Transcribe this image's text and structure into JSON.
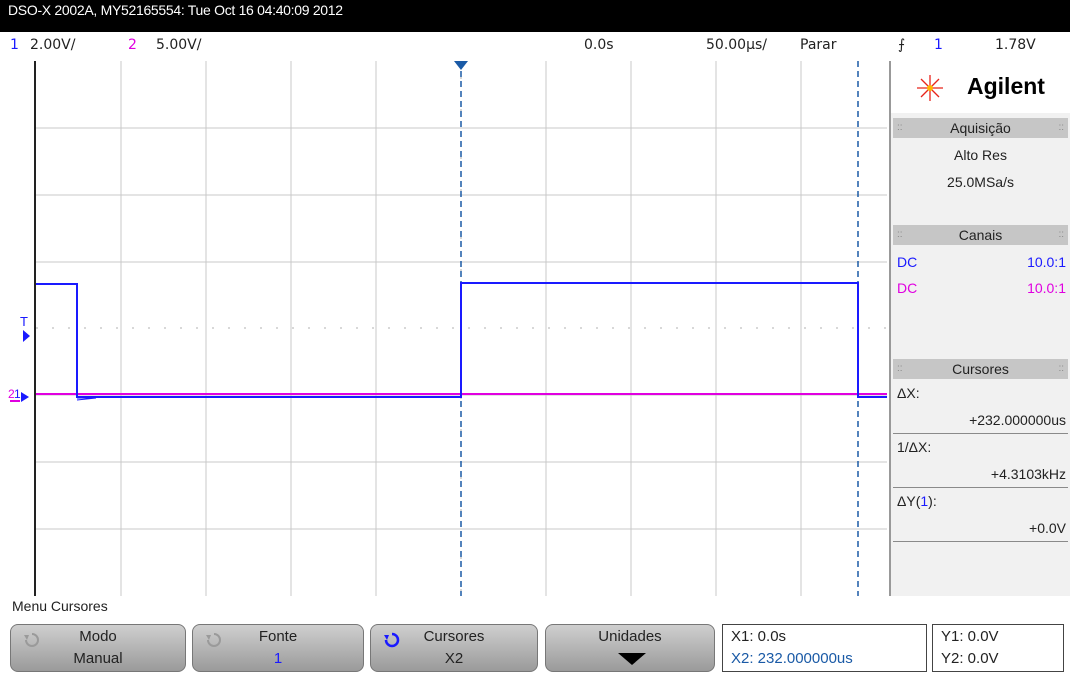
{
  "title": "DSO-X 2002A, MY52165554: Tue Oct 16 04:40:09 2012",
  "status": {
    "ch1_num": "1",
    "ch1_scale": "2.00V/",
    "ch2_num": "2",
    "ch2_scale": "5.00V/",
    "time_pos": "0.0s",
    "timebase": "50.00µs/",
    "run_state": "Parar",
    "trigger_channel": "1",
    "trigger_level": "1.78V"
  },
  "brand": "Agilent",
  "acquisition": {
    "header": "Aquisição",
    "mode": "Alto Res",
    "rate": "25.0MSa/s"
  },
  "channels": {
    "header": "Canais",
    "rows": [
      {
        "coupling": "DC",
        "probe": "10.0:1",
        "color": "#1a1aff"
      },
      {
        "coupling": "DC",
        "probe": "10.0:1",
        "color": "#e000e0"
      }
    ]
  },
  "cursors": {
    "header": "Cursores",
    "dx_label": "ΔX:",
    "dx_value": "+232.000000us",
    "inv_dx_label": "1/ΔX:",
    "inv_dx_value": "+4.3103kHz",
    "dy_label_prefix": "ΔY(",
    "dy_label_channel": "1",
    "dy_label_suffix": "):",
    "dy_value": "+0.0V"
  },
  "menu": {
    "title": "Menu Cursores",
    "softkeys": [
      {
        "top": "Modo",
        "bottom": "Manual"
      },
      {
        "top": "Fonte",
        "bottom": "1"
      },
      {
        "top": "Cursores",
        "bottom": "X2"
      },
      {
        "top": "Unidades",
        "bottom": ""
      }
    ]
  },
  "readouts": {
    "x1": "X1: 0.0s",
    "x2": "X2: 232.000000us",
    "y1": "Y1: 0.0V",
    "y2": "Y2: 0.0V"
  },
  "markers": {
    "trigger_marker": "T",
    "ground_ch1": "1",
    "ground_ch2": "2"
  },
  "colors": {
    "ch1": "#1a1aff",
    "ch2": "#e000e0",
    "cursor": "#1a5aa6",
    "background": "#ffffff",
    "titlebar": "#000000"
  }
}
